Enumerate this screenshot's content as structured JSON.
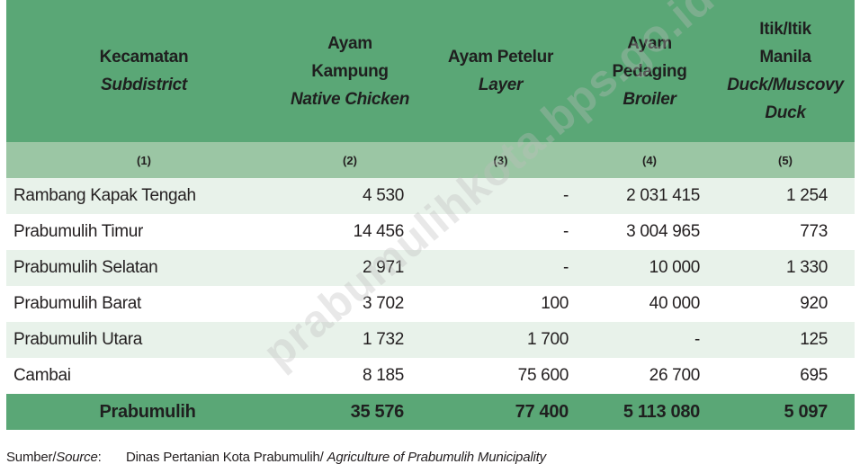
{
  "header": {
    "col1": {
      "id": "Kecamatan",
      "en": "Subdistrict"
    },
    "col2": {
      "id1": "Ayam",
      "id2": "Kampung",
      "en": "Native Chicken"
    },
    "col3": {
      "id": "Ayam Petelur",
      "en": "Layer"
    },
    "col4": {
      "id1": "Ayam",
      "id2": "Pedaging",
      "en": "Broiler"
    },
    "col5": {
      "id1": "Itik/Itik",
      "id2": "Manila",
      "en1": "Duck/Muscovy",
      "en2": "Duck"
    }
  },
  "col_numbers": [
    "(1)",
    "(2)",
    "(3)",
    "(4)",
    "(5)"
  ],
  "rows": [
    {
      "name": "Rambang Kapak Tengah",
      "kampung": "4 530",
      "petelur": "-",
      "pedaging": "2 031 415",
      "itik": "1 254"
    },
    {
      "name": "Prabumulih Timur",
      "kampung": "14 456",
      "petelur": "-",
      "pedaging": "3 004 965",
      "itik": "773"
    },
    {
      "name": "Prabumulih Selatan",
      "kampung": "2 971",
      "petelur": "-",
      "pedaging": "10 000",
      "itik": "1 330"
    },
    {
      "name": "Prabumulih Barat",
      "kampung": "3 702",
      "petelur": "100",
      "pedaging": "40 000",
      "itik": "920"
    },
    {
      "name": "Prabumulih Utara",
      "kampung": "1 732",
      "petelur": "1 700",
      "pedaging": "-",
      "itik": "125"
    },
    {
      "name": "Cambai",
      "kampung": "8 185",
      "petelur": "75 600",
      "pedaging": "26 700",
      "itik": "695"
    }
  ],
  "total": {
    "name": "Prabumulih",
    "kampung": "35 576",
    "petelur": "77 400",
    "pedaging": "5 113 080",
    "itik": "5 097"
  },
  "source": {
    "label_id": "Sumber/",
    "label_en": "Source",
    "label_colon": ":",
    "text_id": "Dinas Pertanian Kota Prabumulih/ ",
    "text_en": "Agriculture of Prabumulih Municipality"
  },
  "watermark": "prabumulihkota.bps.go.id",
  "colors": {
    "header_green": "#5aa776",
    "number_row_green": "#9bc6a4",
    "alt_row": "#e8f2ea"
  }
}
